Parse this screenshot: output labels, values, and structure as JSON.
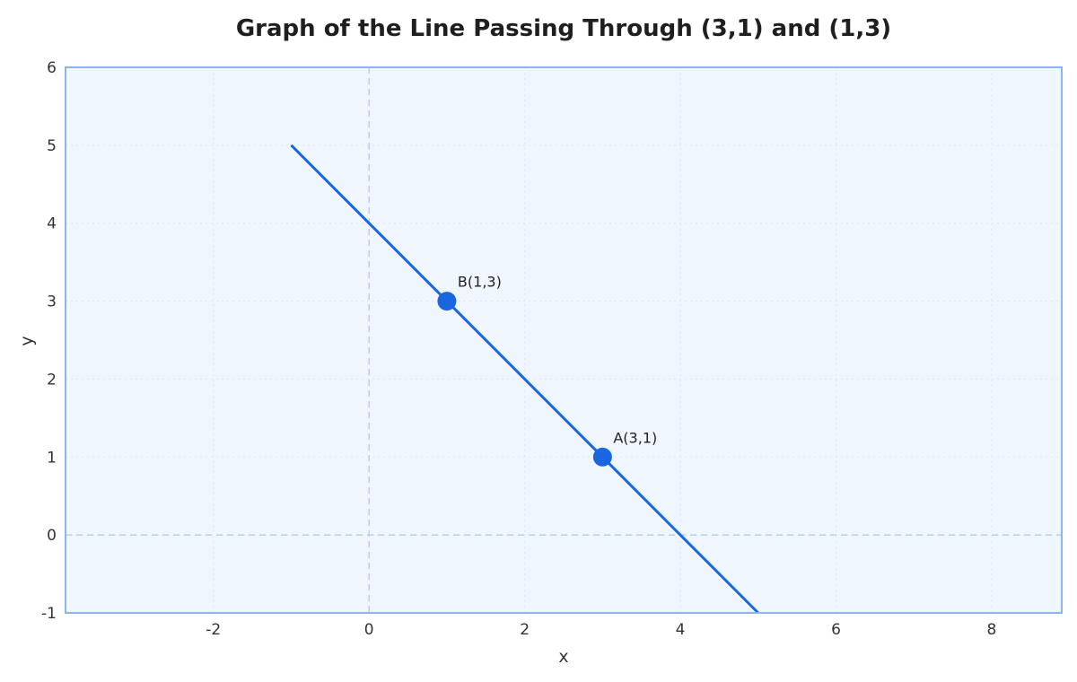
{
  "chart_data": {
    "type": "line",
    "title": "Graph of the Line Passing Through (3,1) and (1,3)",
    "xlabel": "x",
    "ylabel": "y",
    "xlim": [
      -3.9,
      8.9
    ],
    "ylim": [
      -1,
      6
    ],
    "x_ticks": [
      -2,
      0,
      2,
      4,
      6,
      8
    ],
    "y_ticks": [
      -1,
      0,
      1,
      2,
      3,
      4,
      5,
      6
    ],
    "grid": true,
    "reference_lines": {
      "x0": true,
      "y0": true
    },
    "series": [
      {
        "x": [
          -1,
          5
        ],
        "y": [
          5,
          -1
        ]
      }
    ],
    "points": [
      {
        "label": "A(3,1)",
        "x": 3,
        "y": 1
      },
      {
        "label": "B(1,3)",
        "x": 1,
        "y": 3
      }
    ],
    "colors": {
      "line": "#1a66e0",
      "point": "#1a66e0",
      "plot_background": "#f0f6fe",
      "frame": "#8db4ee",
      "grid": "#dce6f4",
      "reference": "#b9d2f3"
    }
  }
}
